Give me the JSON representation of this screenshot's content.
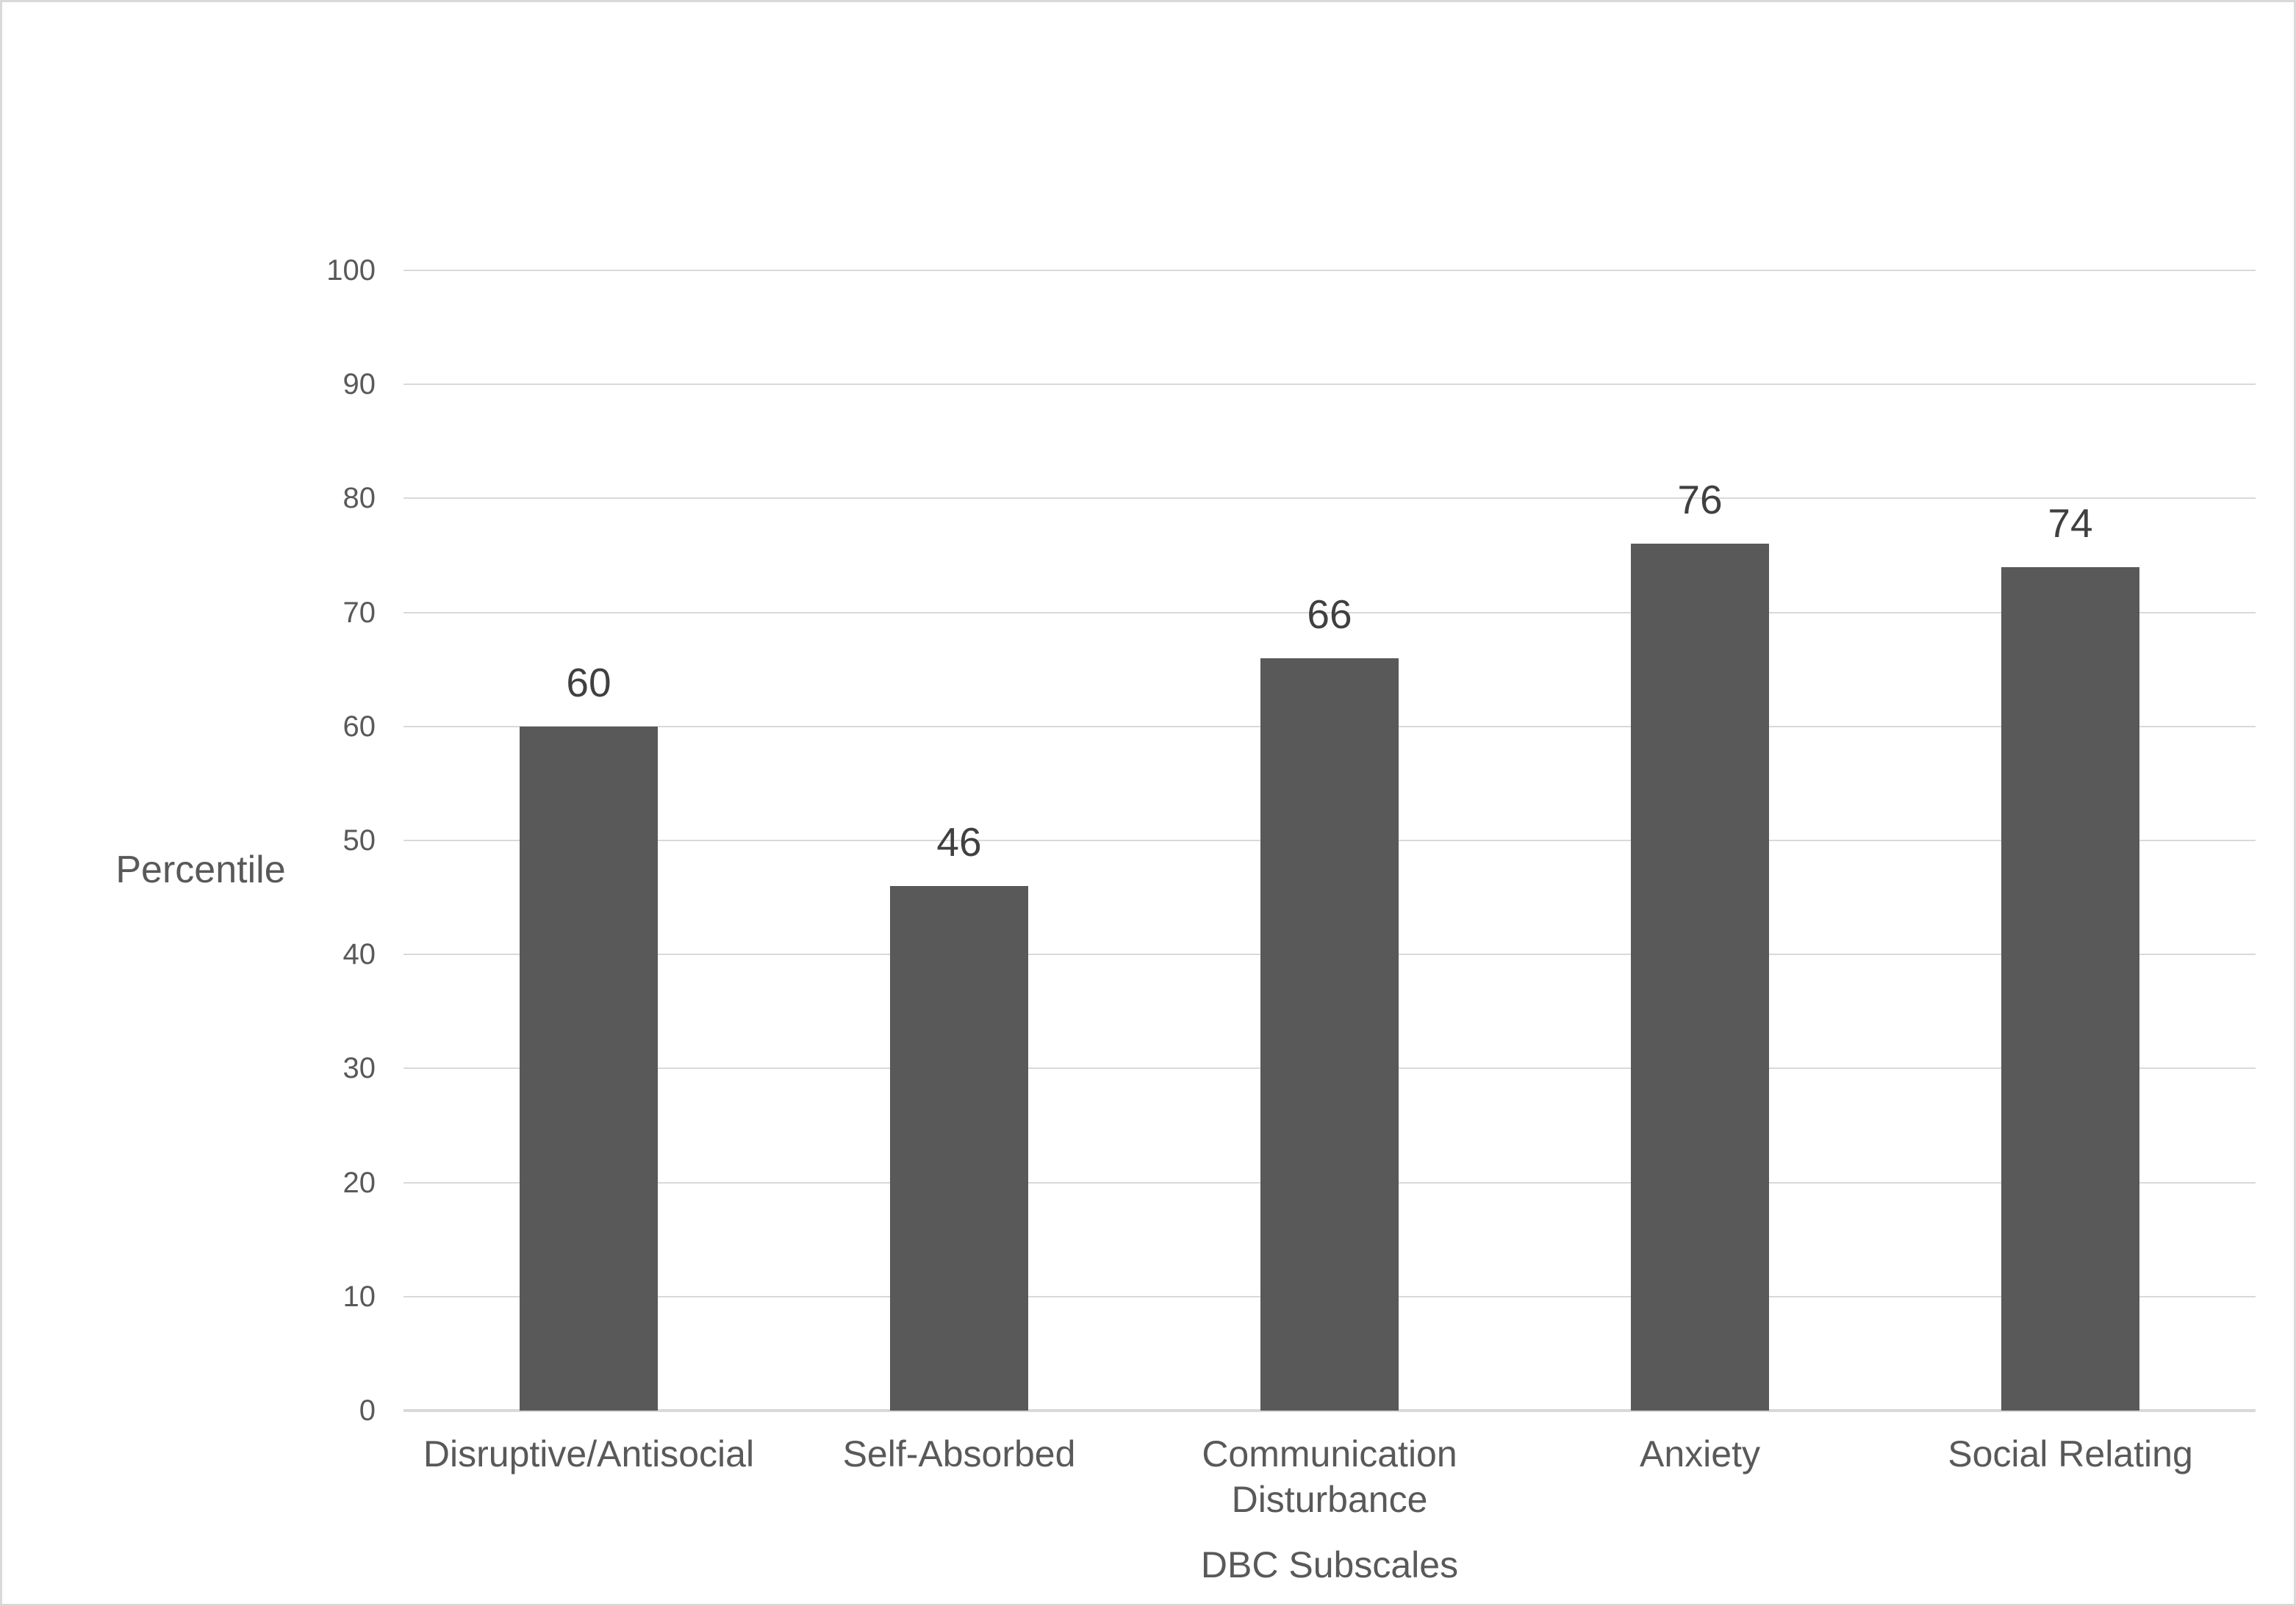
{
  "chart_data": {
    "type": "bar",
    "categories": [
      "Disruptive/Antisocial",
      "Self-Absorbed",
      "Communication Disturbance",
      "Anxiety",
      "Social Relating"
    ],
    "values": [
      60,
      46,
      66,
      76,
      74
    ],
    "data_labels": [
      "60",
      "46",
      "66",
      "76",
      "74"
    ],
    "title": "",
    "xlabel": "DBC Subscales",
    "ylabel": "Percentile",
    "ylim": [
      0,
      100
    ],
    "yticks": [
      0,
      10,
      20,
      30,
      40,
      50,
      60,
      70,
      80,
      90,
      100
    ],
    "grid": "horizontal",
    "legend_position": "none",
    "bar_color": "#595959",
    "gridline_color": "#d9d9d9",
    "axis_line_color": "#d9d9d9",
    "tick_label_color": "#595959",
    "data_label_color": "#404040",
    "axis_title_color": "#595959",
    "background_color": "#ffffff",
    "frame_border_color": "#d9d9d9"
  }
}
